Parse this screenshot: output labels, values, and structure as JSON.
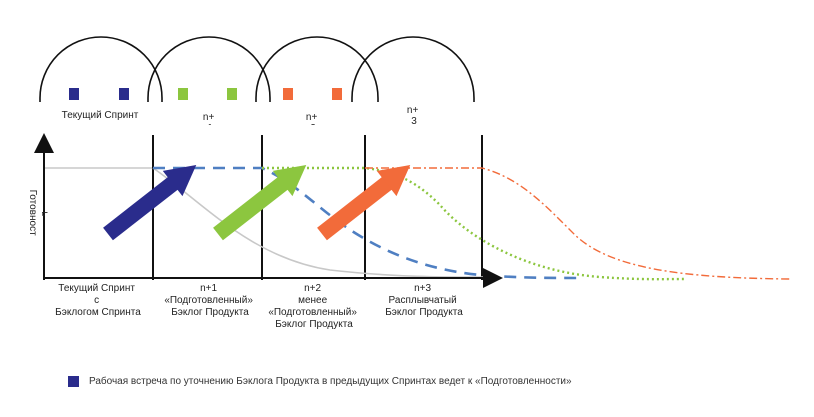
{
  "colors": {
    "dark_blue": "#2a2c8c",
    "green": "#8cc63f",
    "orange": "#f26b3a",
    "dashed_blue": "#4f7fc2",
    "grey_curve": "#c8c8c8",
    "axis": "#111111"
  },
  "header": {
    "labels": [
      "Текущий Спринт",
      "n+\n1",
      "n+\n2",
      "n+\n3"
    ]
  },
  "axis": {
    "ylabel": "Готовност\nь"
  },
  "columns": [
    [
      "Текущий Спринт",
      "с",
      "Бэклогом Спринта"
    ],
    [
      "n+1",
      "«Подготовленный»",
      "Бэклог Продукта"
    ],
    [
      "n+2",
      "менее",
      "«Подготовленный»",
      "Бэклог Продукта"
    ],
    [
      "n+3",
      "Расплывчатый",
      "Бэклог Продукта"
    ]
  ],
  "legend": {
    "text": "Рабочая встреча по уточнению Бэклога Продукта в предыдущих Спринтах ведет к «Подготовленности»",
    "icon": "square-icon"
  }
}
